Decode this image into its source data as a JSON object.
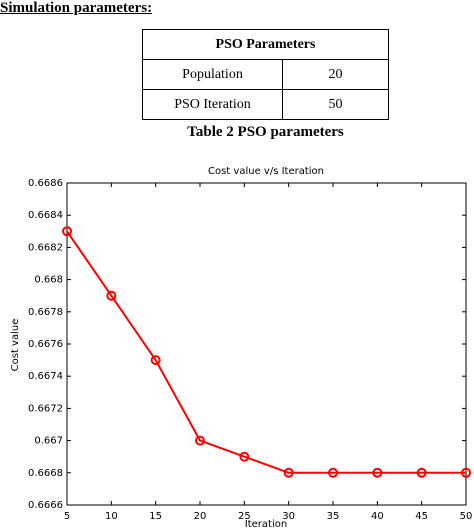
{
  "heading": "Simulation parameters:",
  "table": {
    "header": "PSO Parameters",
    "rows": [
      [
        "Population",
        20
      ],
      [
        "PSO Iteration",
        50
      ]
    ]
  },
  "caption": "Table 2 PSO parameters",
  "chart_data": {
    "type": "line",
    "title": "Cost value v/s Iteration",
    "x_label": "Iteration",
    "y_label": "Cost value",
    "x": [
      5,
      10,
      15,
      20,
      25,
      30,
      35,
      40,
      45,
      50
    ],
    "values": [
      0.6683,
      0.6679,
      0.6675,
      0.667,
      0.6669,
      0.6668,
      0.6668,
      0.6668,
      0.6668,
      0.6668
    ],
    "color": "#ff0000",
    "xlim": [
      5,
      50
    ],
    "xticks": [
      5,
      10,
      15,
      20,
      25,
      30,
      35,
      40,
      45,
      50
    ],
    "ylim": [
      0.6666,
      0.6686
    ],
    "yticks": [
      0.6666,
      0.6668,
      0.667,
      0.6672,
      0.6674,
      0.6676,
      0.6678,
      0.668,
      0.6682,
      0.6684,
      0.6686
    ],
    "grid": false
  }
}
